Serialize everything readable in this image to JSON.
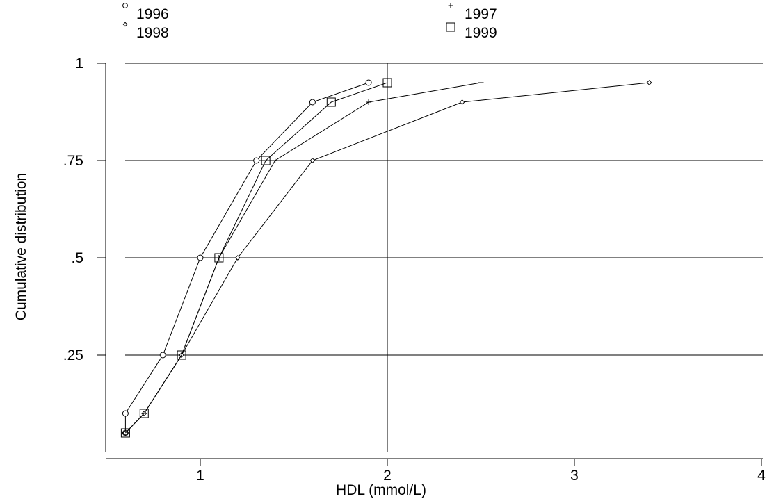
{
  "chart_data": {
    "type": "line",
    "xlabel": "HDL (mmol/L)",
    "ylabel": "Cumulative distribution",
    "xlim": [
      0.55,
      4.05
    ],
    "ylim": [
      0.02,
      1.0
    ],
    "x_ticks": [
      1,
      2,
      3,
      4
    ],
    "x_tick_labels": [
      "1",
      "2",
      "3",
      "4"
    ],
    "y_ticks": [
      0.25,
      0.5,
      0.75,
      1
    ],
    "y_tick_labels": [
      ".25",
      ".5",
      ".75",
      "1"
    ],
    "hgrid": true,
    "reference_line_x": 2,
    "legend_position": "top",
    "series": [
      {
        "name": "1996",
        "marker": "circle",
        "x": [
          0.6,
          0.6,
          0.8,
          1.0,
          1.3,
          1.6,
          1.9
        ],
        "y": [
          0.05,
          0.1,
          0.25,
          0.5,
          0.75,
          0.9,
          0.95
        ]
      },
      {
        "name": "1997",
        "marker": "plus",
        "x": [
          0.6,
          0.7,
          0.9,
          1.1,
          1.4,
          1.9,
          2.5
        ],
        "y": [
          0.05,
          0.1,
          0.25,
          0.5,
          0.75,
          0.9,
          0.95
        ]
      },
      {
        "name": "1998",
        "marker": "diamond",
        "x": [
          0.6,
          0.7,
          0.9,
          1.2,
          1.6,
          2.4,
          3.4
        ],
        "y": [
          0.05,
          0.1,
          0.25,
          0.5,
          0.75,
          0.9,
          0.95
        ]
      },
      {
        "name": "1999",
        "marker": "square",
        "x": [
          0.6,
          0.7,
          0.9,
          1.1,
          1.35,
          1.7,
          2.0
        ],
        "y": [
          0.05,
          0.1,
          0.25,
          0.5,
          0.75,
          0.9,
          0.95
        ]
      }
    ]
  }
}
